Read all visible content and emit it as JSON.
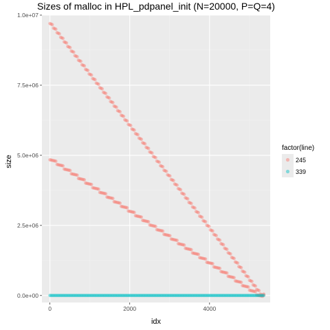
{
  "chart_data": {
    "type": "scatter",
    "title": "Sizes of malloc in HPL_pdpanel_init (N=20000, P=Q=4)",
    "xlabel": "idx",
    "ylabel": "size",
    "xlim": [
      -200,
      5520
    ],
    "ylim": [
      -250000,
      10000000
    ],
    "x_ticks": [
      0,
      2000,
      4000
    ],
    "x_tick_labels": [
      "0",
      "2000",
      "4000"
    ],
    "y_ticks": [
      0,
      2500000,
      5000000,
      7500000,
      10000000
    ],
    "y_tick_labels": [
      "0.0e+00",
      "2.5e+06",
      "5.0e+06",
      "7.5e+06",
      "1.0e+07"
    ],
    "grid": true,
    "legend": {
      "title": "factor(line)",
      "position": "right",
      "entries": [
        "245",
        "339"
      ]
    },
    "series": [
      {
        "name": "245",
        "color": "#F8766D",
        "segments": [
          {
            "x": [
              0,
              5360
            ],
            "y": [
              9700000,
              50000
            ],
            "steps": 60
          },
          {
            "x": [
              0,
              5360
            ],
            "y": [
              4840000,
              20000
            ],
            "steps": 30
          }
        ]
      },
      {
        "name": "339",
        "color": "#00BFC4",
        "segments": [
          {
            "x": [
              0,
              5360
            ],
            "y": [
              0,
              0
            ],
            "steps": 0
          }
        ]
      }
    ]
  }
}
